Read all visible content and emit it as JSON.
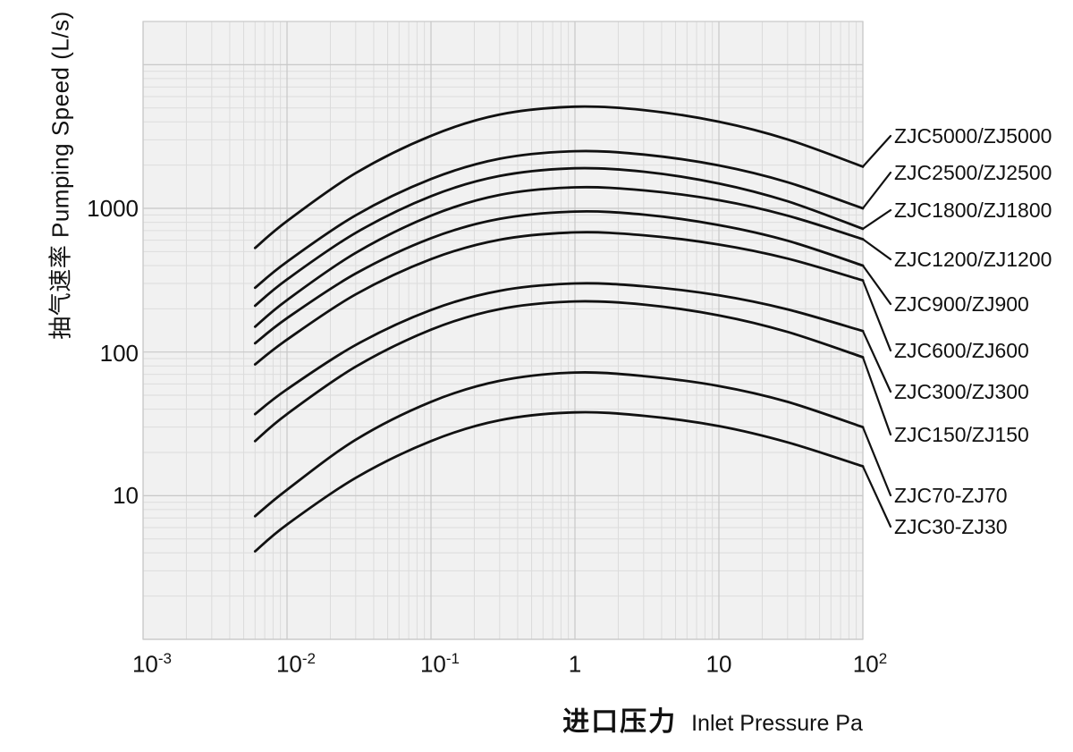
{
  "chart_data": {
    "type": "line",
    "title": "",
    "xlabel_zh": "进口压力",
    "xlabel_en": "Inlet Pressure Pa",
    "ylabel": "抽气速率 Pumping Speed (L/s)",
    "x_scale": "log",
    "y_scale": "log",
    "xlim": [
      0.001,
      100
    ],
    "ylim": [
      1,
      20000
    ],
    "grid": "on",
    "legend_position": "right-of-plot with leader lines",
    "x_ticks": [
      {
        "base": "10",
        "exp": "-3",
        "value": 0.001
      },
      {
        "base": "10",
        "exp": "-2",
        "value": 0.01
      },
      {
        "base": "10",
        "exp": "-1",
        "value": 0.1
      },
      {
        "base": "1",
        "exp": "",
        "value": 1
      },
      {
        "base": "10",
        "exp": "",
        "value": 10
      },
      {
        "base": "10",
        "exp": "2",
        "value": 100
      }
    ],
    "y_ticks": [
      {
        "label": "1000",
        "value": 1000
      },
      {
        "label": "100",
        "value": 100
      },
      {
        "label": "10",
        "value": 10
      }
    ],
    "pressures": [
      0.006,
      0.01,
      0.03,
      0.1,
      0.3,
      1,
      3,
      10,
      30,
      100
    ],
    "series": [
      {
        "label": "ZJC5000/ZJ5000",
        "label_y": 152,
        "values": [
          530,
          815,
          1760,
          3200,
          4500,
          5100,
          4830,
          4010,
          3020,
          1950
        ]
      },
      {
        "label": "ZJC2500/ZJ2500",
        "label_y": 193,
        "values": [
          280,
          425,
          895,
          1600,
          2215,
          2500,
          2370,
          1990,
          1520,
          1000
        ]
      },
      {
        "label": "ZJC1800/ZJ1800",
        "label_y": 235,
        "values": [
          210,
          320,
          675,
          1215,
          1680,
          1900,
          1800,
          1490,
          1120,
          720
        ]
      },
      {
        "label": "ZJC1200/ZJ1200",
        "label_y": 290,
        "values": [
          150,
          230,
          490,
          890,
          1240,
          1400,
          1335,
          1140,
          890,
          610
        ]
      },
      {
        "label": "ZJC900/ZJ900",
        "label_y": 340,
        "values": [
          115,
          172,
          352,
          620,
          845,
          950,
          905,
          765,
          595,
          400
        ]
      },
      {
        "label": "ZJC600/ZJ600",
        "label_y": 392,
        "values": [
          82,
          122,
          252,
          443,
          605,
          680,
          650,
          560,
          447,
          315
        ]
      },
      {
        "label": "ZJC300/ZJ300",
        "label_y": 438,
        "values": [
          37,
          55,
          112,
          196,
          267,
          300,
          287,
          248,
          198,
          140
        ]
      },
      {
        "label": "ZJC150/ZJ150",
        "label_y": 486,
        "values": [
          24,
          37,
          79,
          143,
          199,
          225,
          214,
          180,
          138,
          92
        ]
      },
      {
        "label": "ZJC70-ZJ70",
        "label_y": 554,
        "values": [
          7.2,
          11,
          24.5,
          45,
          63,
          72,
          68,
          58,
          45,
          30
        ]
      },
      {
        "label": "ZJC30-ZJ30",
        "label_y": 589,
        "values": [
          4.1,
          6.3,
          13.3,
          24,
          33.5,
          38,
          36,
          30.5,
          23.5,
          16
        ]
      }
    ],
    "colors": {
      "line": "#111111",
      "plot_bg": "#f1f1f1",
      "grid_minor": "#dcdcdc",
      "grid_major": "#c8c8c8",
      "text": "#111111"
    }
  }
}
